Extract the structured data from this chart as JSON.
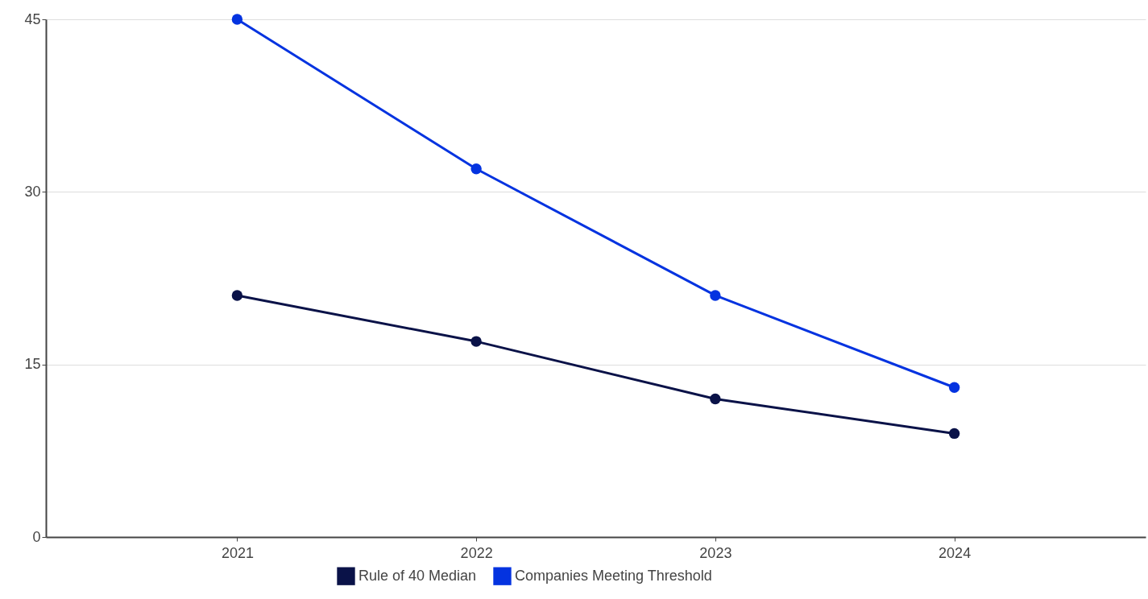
{
  "chart_data": {
    "type": "line",
    "categories": [
      "2021",
      "2022",
      "2023",
      "2024"
    ],
    "series": [
      {
        "name": "Rule of 40 Median",
        "color": "#0a1248",
        "values": [
          21,
          17,
          12,
          9
        ]
      },
      {
        "name": "Companies Meeting Threshold",
        "color": "#0433e0",
        "values": [
          45,
          32,
          21,
          13
        ]
      }
    ],
    "ylim": [
      0,
      45
    ],
    "yticks": [
      0,
      15,
      30,
      45
    ],
    "grid": "y",
    "legend": "bottom",
    "marker": "circle",
    "line_style": "solid"
  }
}
